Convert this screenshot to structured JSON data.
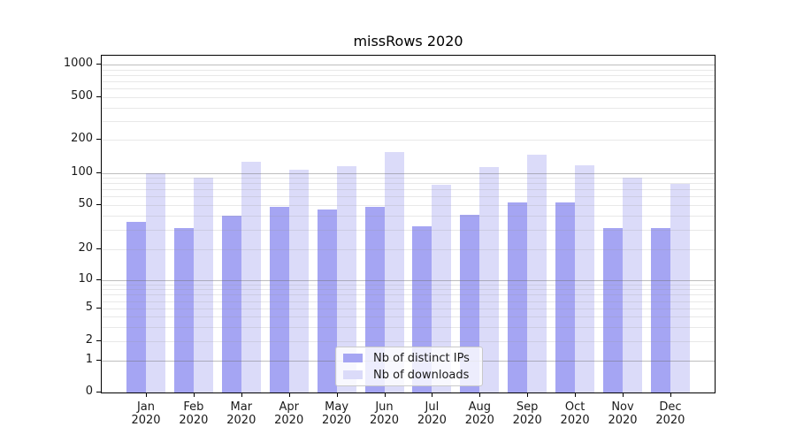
{
  "title": "missRows 2020",
  "chart_data": {
    "type": "bar",
    "title": "missRows 2020",
    "categories": [
      "Jan 2020",
      "Feb 2020",
      "Mar 2020",
      "Apr 2020",
      "May 2020",
      "Jun 2020",
      "Jul 2020",
      "Aug 2020",
      "Sep 2020",
      "Oct 2020",
      "Nov 2020",
      "Dec 2020"
    ],
    "series": [
      {
        "name": "Nb of distinct IPs",
        "color": "#a5a5f3",
        "values": [
          35,
          31,
          40,
          48,
          46,
          48,
          32,
          41,
          53,
          53,
          31,
          31
        ]
      },
      {
        "name": "Nb of downloads",
        "color": "#dbdbf9",
        "values": [
          100,
          90,
          125,
          107,
          115,
          155,
          78,
          113,
          146,
          117,
          90,
          79
        ]
      }
    ],
    "yscale": "symlog",
    "ylim": [
      0,
      1000
    ],
    "y_ticks": [
      0,
      1,
      2,
      5,
      10,
      20,
      50,
      100,
      200,
      500,
      1000
    ],
    "grid": "horizontal, log minor gridlines",
    "legend_position": "lower-center-inside"
  },
  "x_axis": {
    "months": [
      "Jan",
      "Feb",
      "Mar",
      "Apr",
      "May",
      "Jun",
      "Jul",
      "Aug",
      "Sep",
      "Oct",
      "Nov",
      "Dec"
    ],
    "year": "2020"
  },
  "y_axis": {
    "tick_labels": [
      "1000",
      "500",
      "200",
      "100",
      "50",
      "20",
      "10",
      "5",
      "2",
      "1",
      "0"
    ]
  },
  "colors": {
    "bar_distinct_ips": "#a5a5f3",
    "bar_downloads": "#dbdbf9",
    "major_grid": "#b3b3b3",
    "minor_grid": "#e3e3e3",
    "axis": "#000000",
    "background": "#ffffff"
  }
}
